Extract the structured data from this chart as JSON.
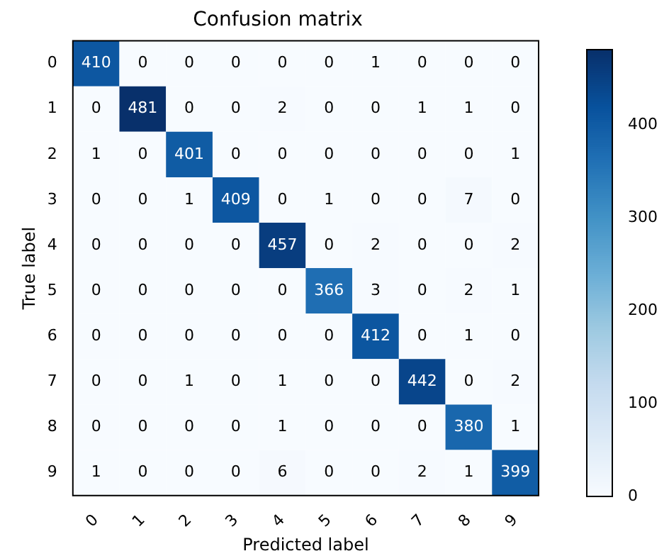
{
  "chart_data": {
    "type": "heatmap",
    "title": "Confusion matrix",
    "xlabel": "Predicted label",
    "ylabel": "True label",
    "categories": [
      "0",
      "1",
      "2",
      "3",
      "4",
      "5",
      "6",
      "7",
      "8",
      "9"
    ],
    "y_categories": [
      "0",
      "1",
      "2",
      "3",
      "4",
      "5",
      "6",
      "7",
      "8",
      "9"
    ],
    "cells": [
      [
        410,
        0,
        0,
        0,
        0,
        0,
        1,
        0,
        0,
        0
      ],
      [
        0,
        481,
        0,
        0,
        2,
        0,
        0,
        1,
        1,
        0
      ],
      [
        1,
        0,
        401,
        0,
        0,
        0,
        0,
        0,
        0,
        1
      ],
      [
        0,
        0,
        1,
        409,
        0,
        1,
        0,
        0,
        7,
        0
      ],
      [
        0,
        0,
        0,
        0,
        457,
        0,
        2,
        0,
        0,
        2
      ],
      [
        0,
        0,
        0,
        0,
        0,
        366,
        3,
        0,
        2,
        1
      ],
      [
        0,
        0,
        0,
        0,
        0,
        0,
        412,
        0,
        1,
        0
      ],
      [
        0,
        0,
        1,
        0,
        1,
        0,
        0,
        442,
        0,
        2
      ],
      [
        0,
        0,
        0,
        0,
        1,
        0,
        0,
        0,
        380,
        1
      ],
      [
        1,
        0,
        0,
        0,
        6,
        0,
        0,
        2,
        1,
        399
      ]
    ],
    "clim": [
      0,
      481
    ],
    "cticks": [
      0,
      100,
      200,
      300,
      400
    ],
    "data_labels": true
  }
}
